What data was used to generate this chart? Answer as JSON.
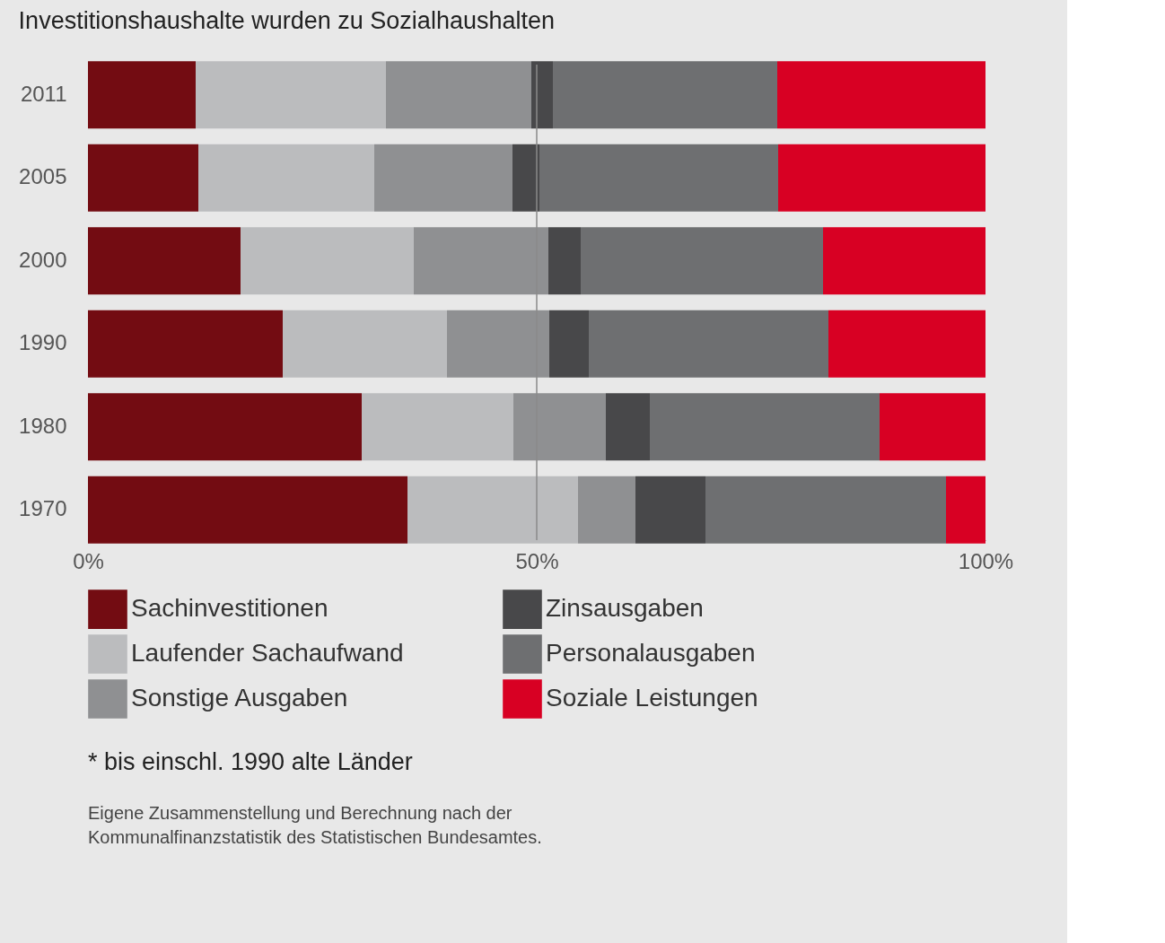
{
  "chart_data": {
    "type": "bar",
    "orientation": "horizontal",
    "stacked": true,
    "title": "Investitionshaushalte wurden zu Sozialhaushalten",
    "categories": [
      "2011",
      "2005",
      "2000",
      "1990",
      "1980",
      "1970"
    ],
    "series": [
      {
        "name": "Sachinvestitionen",
        "color": "#730c12",
        "values": [
          12.0,
          12.3,
          17.0,
          21.7,
          30.5,
          35.6
        ]
      },
      {
        "name": "Laufender Sachaufwand",
        "color": "#bbbcbe",
        "values": [
          21.2,
          19.6,
          19.3,
          18.3,
          16.9,
          19.0
        ]
      },
      {
        "name": "Sonstige Ausgaben",
        "color": "#8f9092",
        "values": [
          16.2,
          15.4,
          15.0,
          11.4,
          10.3,
          6.4
        ]
      },
      {
        "name": "Zinsausgaben",
        "color": "#48484a",
        "values": [
          2.4,
          3.0,
          3.6,
          4.4,
          4.9,
          7.8
        ]
      },
      {
        "name": "Personalausgaben",
        "color": "#6e6f71",
        "values": [
          25.0,
          26.6,
          27.0,
          26.7,
          25.6,
          26.8
        ]
      },
      {
        "name": "Soziale Leistungen",
        "color": "#d80023",
        "values": [
          23.2,
          23.1,
          18.1,
          17.5,
          11.8,
          4.4
        ]
      }
    ],
    "xlim": [
      0,
      100
    ],
    "xticks": [
      {
        "value": 0,
        "label": "0%"
      },
      {
        "value": 50,
        "label": "50%"
      },
      {
        "value": 100,
        "label": "100%"
      }
    ],
    "ref_lines": [
      {
        "axis": "x",
        "value": 50,
        "color": "#8a8a8a"
      }
    ],
    "grid": false,
    "legend": "bottom",
    "annotations": [
      "* bis einschl. 1990 alte Länder",
      "Eigene Zusammenstellung und Berechnung nach der Kommunalfinanzstatistik des Statistischen Bundesamtes."
    ]
  }
}
